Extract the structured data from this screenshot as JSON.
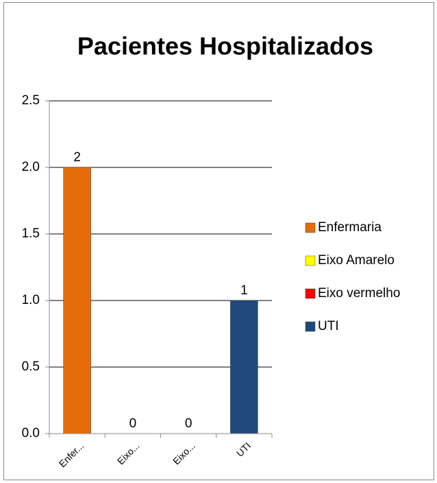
{
  "chart_data": {
    "type": "bar",
    "title": "Pacientes Hospitalizados",
    "categories": [
      "Enfer...",
      "Eixo...",
      "Eixo...",
      "UTI"
    ],
    "values": [
      2,
      0,
      0,
      1
    ],
    "colors": [
      "#e46c0a",
      "#ffff00",
      "#ff0000",
      "#1f497d"
    ],
    "legend": [
      "Enfermaria",
      "Eixo Amarelo",
      "Eixo vermelho",
      "UTI"
    ],
    "legend_position": "right",
    "ylim": [
      0,
      2.5
    ],
    "yticks": [
      {
        "value": 0,
        "label": "0.0"
      },
      {
        "value": 0.5,
        "label": "0.5"
      },
      {
        "value": 1,
        "label": "1.0"
      },
      {
        "value": 1.5,
        "label": "1.5"
      },
      {
        "value": 2,
        "label": "2.0"
      },
      {
        "value": 2.5,
        "label": "2.5"
      }
    ],
    "grid": true
  }
}
